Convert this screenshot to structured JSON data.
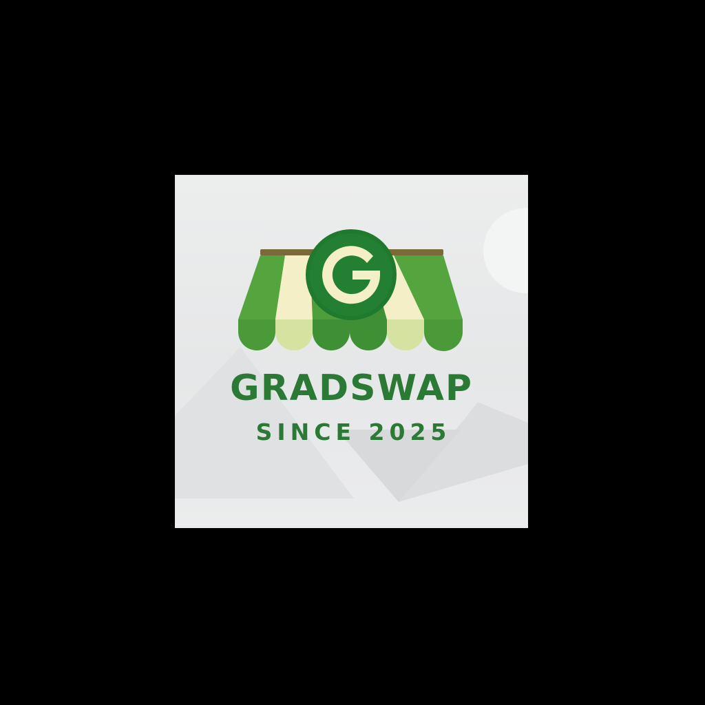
{
  "logo": {
    "name": "GRADSWAP",
    "tagline": "SINCE 2025",
    "badge_letter": "G"
  },
  "colors": {
    "page_background": "#000000",
    "tile_background": "#e8e9ea",
    "brand_green": "#2a7a35",
    "badge_green": "#1f7a2e",
    "awning_green": "#4e9e3c",
    "awning_cream": "#f4efc6",
    "awning_light": "#d6e2a0",
    "rod_brown": "#7a6a3a"
  },
  "icons": {
    "storefront": "storefront-awning-icon",
    "badge": "g-letter-badge-icon"
  }
}
